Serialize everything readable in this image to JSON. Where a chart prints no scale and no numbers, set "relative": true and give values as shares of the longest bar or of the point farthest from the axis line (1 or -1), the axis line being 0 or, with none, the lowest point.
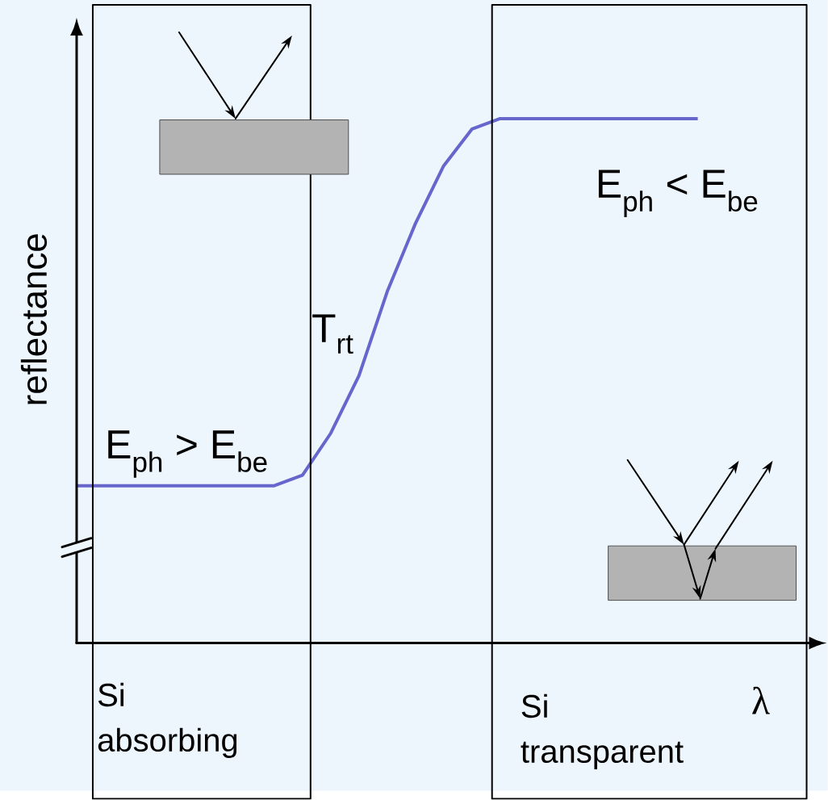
{
  "chart_data": {
    "type": "line",
    "relative": true,
    "ylabel": "reflectance",
    "xlabel": "λ",
    "categories": [
      null,
      null,
      null,
      null,
      null,
      null,
      null,
      null,
      null,
      null,
      null,
      null,
      null,
      null,
      null,
      null,
      null,
      null,
      null,
      null,
      null,
      null,
      null
    ],
    "series": [
      {
        "color": "#6666cc",
        "values": [
          0.3,
          0.3,
          0.3,
          0.3,
          0.3,
          0.3,
          0.3,
          0.3,
          0.32,
          0.4,
          0.51,
          0.67,
          0.8,
          0.91,
          0.98,
          1.0,
          1.0,
          1.0,
          1.0,
          1.0,
          1.0,
          1.0,
          1.0
        ]
      }
    ],
    "annotations": [
      "E$_{ph}$ > E$_{be}$",
      "T$_{rt}$",
      "E$_{ph}$ < E$_{be}$",
      "Si absorbing",
      "Si transparent"
    ]
  }
}
